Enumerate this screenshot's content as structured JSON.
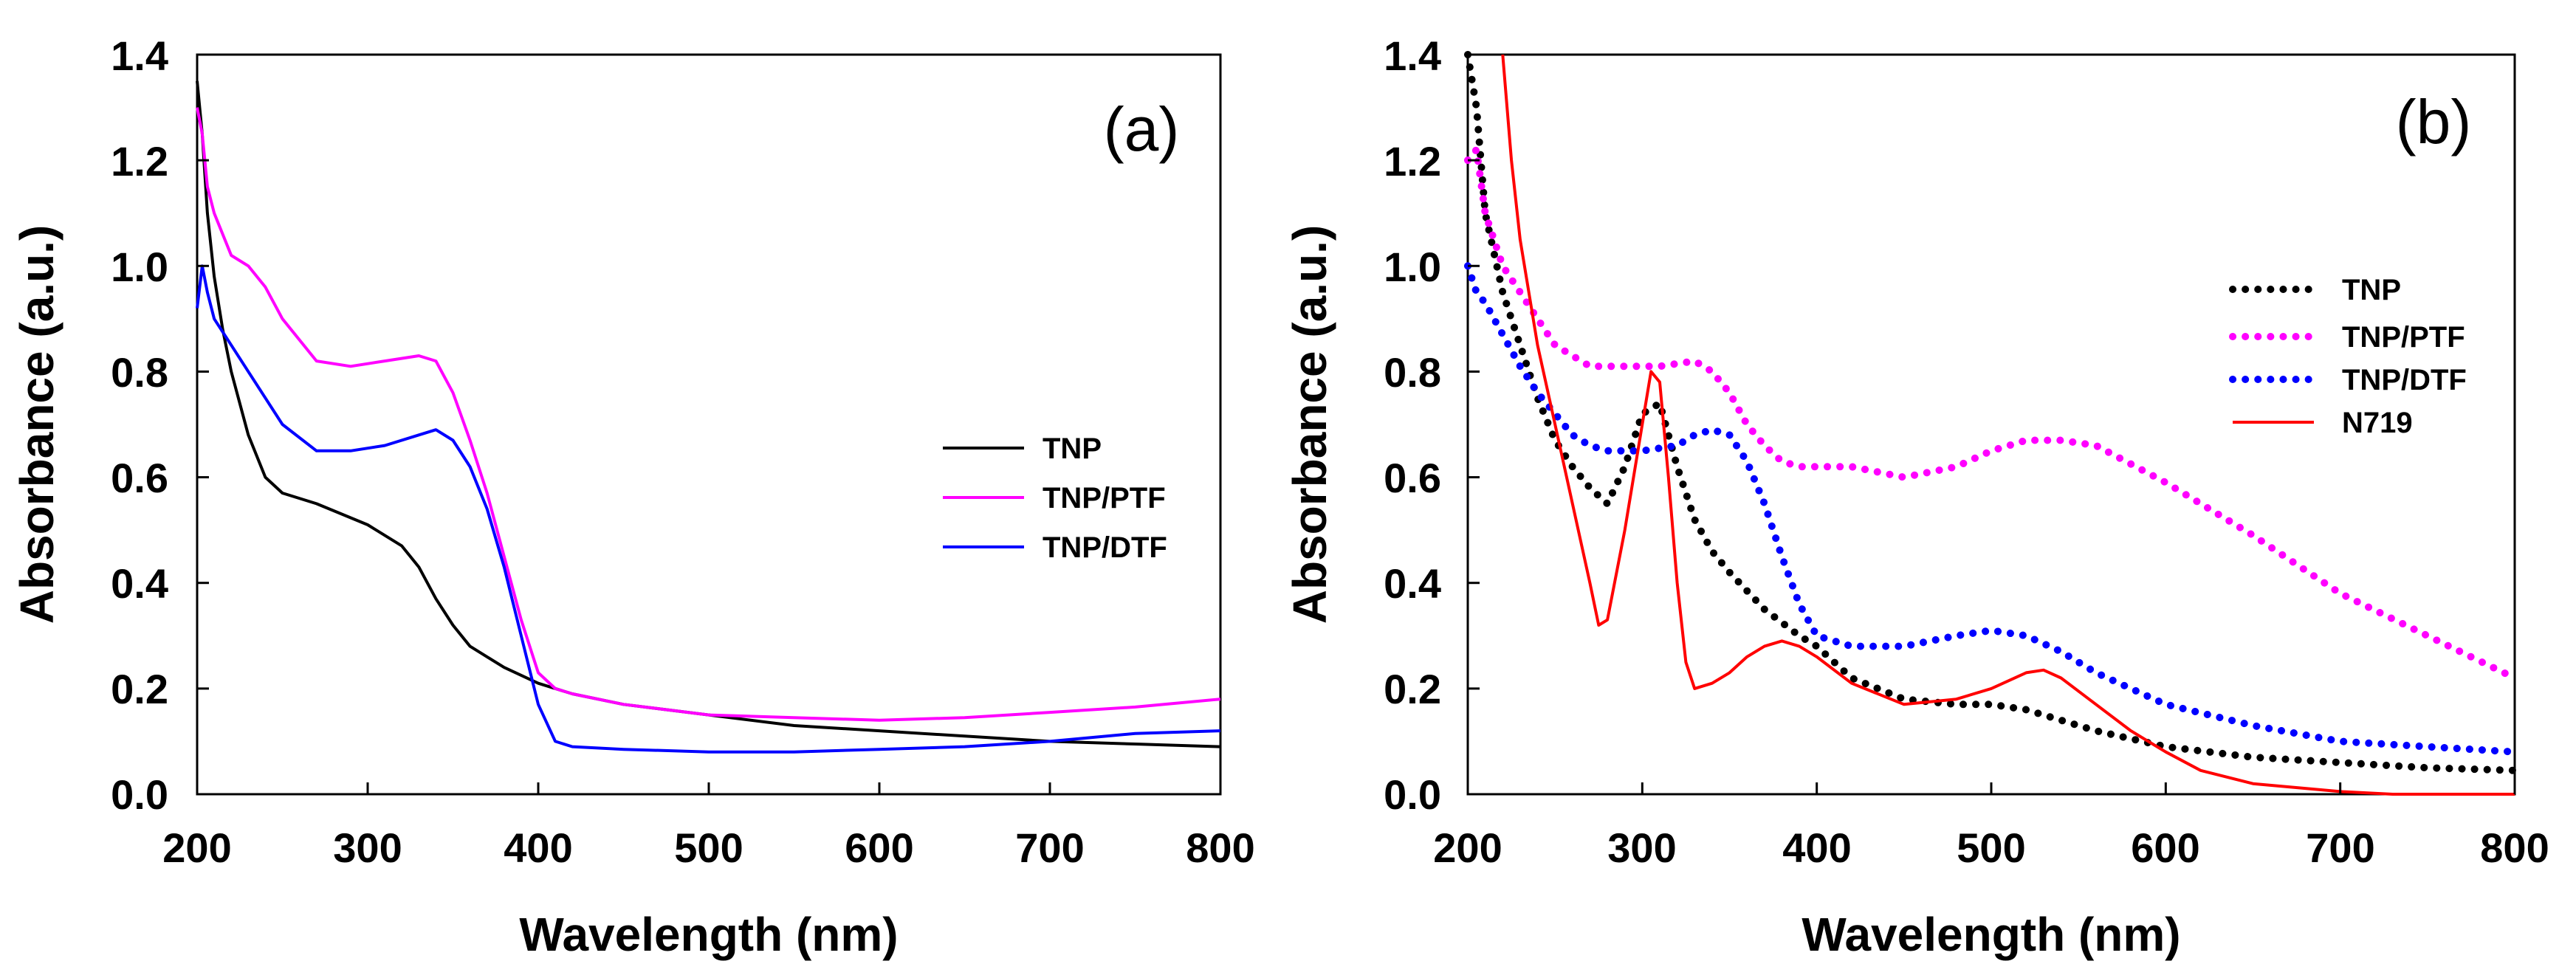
{
  "chart_data": [
    {
      "type": "line",
      "panel_label": "(a)",
      "xlabel": "Wavelength (nm)",
      "ylabel": "Absorbance (a.u.)",
      "xlim": [
        200,
        800
      ],
      "ylim": [
        0.0,
        1.4
      ],
      "xticks": [
        "200",
        "300",
        "400",
        "500",
        "600",
        "700",
        "800"
      ],
      "yticks": [
        "0.0",
        "0.2",
        "0.4",
        "0.6",
        "0.8",
        "1.0",
        "1.2",
        "1.4"
      ],
      "legend_position": "center-right",
      "series": [
        {
          "name": "TNP",
          "color": "#000000",
          "style": "solid",
          "x": [
            200,
            203,
            206,
            210,
            215,
            220,
            230,
            240,
            250,
            270,
            300,
            320,
            330,
            340,
            350,
            360,
            370,
            380,
            400,
            420,
            450,
            500,
            550,
            600,
            650,
            700,
            750,
            800
          ],
          "y": [
            1.35,
            1.25,
            1.1,
            0.98,
            0.88,
            0.8,
            0.68,
            0.6,
            0.57,
            0.55,
            0.51,
            0.47,
            0.43,
            0.37,
            0.32,
            0.28,
            0.26,
            0.24,
            0.21,
            0.19,
            0.17,
            0.15,
            0.13,
            0.12,
            0.11,
            0.1,
            0.095,
            0.09
          ]
        },
        {
          "name": "TNP/PTF",
          "color": "#ff00ff",
          "style": "solid",
          "x": [
            200,
            203,
            206,
            210,
            220,
            230,
            240,
            250,
            270,
            290,
            310,
            330,
            340,
            350,
            360,
            370,
            380,
            390,
            400,
            410,
            420,
            450,
            500,
            550,
            600,
            650,
            700,
            750,
            800
          ],
          "y": [
            1.3,
            1.25,
            1.15,
            1.1,
            1.02,
            1.0,
            0.96,
            0.9,
            0.82,
            0.81,
            0.82,
            0.83,
            0.82,
            0.76,
            0.67,
            0.57,
            0.45,
            0.33,
            0.23,
            0.2,
            0.19,
            0.17,
            0.15,
            0.145,
            0.14,
            0.145,
            0.155,
            0.165,
            0.18
          ]
        },
        {
          "name": "TNP/DTF",
          "color": "#0000ff",
          "style": "solid",
          "x": [
            200,
            203,
            206,
            210,
            220,
            230,
            240,
            250,
            270,
            290,
            310,
            330,
            340,
            350,
            360,
            370,
            380,
            390,
            400,
            410,
            420,
            450,
            500,
            550,
            600,
            650,
            700,
            750,
            800
          ],
          "y": [
            0.92,
            1.0,
            0.95,
            0.9,
            0.85,
            0.8,
            0.75,
            0.7,
            0.65,
            0.65,
            0.66,
            0.68,
            0.69,
            0.67,
            0.62,
            0.54,
            0.43,
            0.3,
            0.17,
            0.1,
            0.09,
            0.085,
            0.08,
            0.08,
            0.085,
            0.09,
            0.1,
            0.115,
            0.12
          ]
        }
      ]
    },
    {
      "type": "line",
      "panel_label": "(b)",
      "xlabel": "Wavelength (nm)",
      "ylabel": "Absorbance (a.u.)",
      "xlim": [
        200,
        800
      ],
      "ylim": [
        0.0,
        1.4
      ],
      "xticks": [
        "200",
        "300",
        "400",
        "500",
        "600",
        "700",
        "800"
      ],
      "yticks": [
        "0.0",
        "0.2",
        "0.4",
        "0.6",
        "0.8",
        "1.0",
        "1.2",
        "1.4"
      ],
      "legend_position": "center-right",
      "series": [
        {
          "name": "TNP",
          "color": "#000000",
          "style": "dotted",
          "x": [
            200,
            205,
            210,
            220,
            230,
            240,
            250,
            260,
            270,
            280,
            290,
            300,
            310,
            320,
            330,
            340,
            350,
            370,
            390,
            400,
            420,
            450,
            480,
            500,
            520,
            540,
            560,
            600,
            650,
            700,
            750,
            800
          ],
          "y": [
            1.4,
            1.3,
            1.1,
            0.95,
            0.85,
            0.75,
            0.67,
            0.62,
            0.58,
            0.55,
            0.62,
            0.72,
            0.74,
            0.62,
            0.52,
            0.46,
            0.42,
            0.35,
            0.3,
            0.28,
            0.22,
            0.18,
            0.17,
            0.17,
            0.16,
            0.14,
            0.12,
            0.09,
            0.07,
            0.06,
            0.05,
            0.045
          ]
        },
        {
          "name": "TNP/PTF",
          "color": "#ff00ff",
          "style": "dotted",
          "x": [
            200,
            205,
            210,
            220,
            230,
            240,
            250,
            270,
            290,
            310,
            330,
            340,
            350,
            360,
            370,
            380,
            390,
            400,
            420,
            450,
            480,
            500,
            520,
            540,
            560,
            600,
            650,
            700,
            750,
            800
          ],
          "y": [
            1.2,
            1.22,
            1.1,
            1.0,
            0.95,
            0.9,
            0.85,
            0.81,
            0.81,
            0.81,
            0.82,
            0.8,
            0.76,
            0.7,
            0.66,
            0.63,
            0.62,
            0.62,
            0.62,
            0.6,
            0.62,
            0.65,
            0.67,
            0.67,
            0.66,
            0.59,
            0.49,
            0.38,
            0.3,
            0.22
          ]
        },
        {
          "name": "TNP/DTF",
          "color": "#0000ff",
          "style": "dotted",
          "x": [
            200,
            205,
            210,
            220,
            230,
            240,
            250,
            260,
            270,
            280,
            300,
            320,
            330,
            340,
            350,
            360,
            370,
            380,
            390,
            400,
            420,
            450,
            480,
            500,
            520,
            540,
            560,
            600,
            650,
            700,
            750,
            800
          ],
          "y": [
            1.0,
            0.95,
            0.93,
            0.87,
            0.81,
            0.76,
            0.72,
            0.68,
            0.66,
            0.65,
            0.65,
            0.66,
            0.68,
            0.69,
            0.68,
            0.63,
            0.55,
            0.45,
            0.36,
            0.3,
            0.28,
            0.28,
            0.3,
            0.31,
            0.3,
            0.27,
            0.23,
            0.17,
            0.13,
            0.1,
            0.09,
            0.08
          ]
        },
        {
          "name": "N719",
          "color": "#ff0000",
          "style": "solid",
          "x": [
            220,
            225,
            230,
            240,
            250,
            260,
            270,
            275,
            280,
            290,
            300,
            305,
            310,
            315,
            320,
            325,
            330,
            340,
            350,
            360,
            370,
            380,
            390,
            400,
            420,
            450,
            480,
            500,
            520,
            530,
            540,
            560,
            580,
            600,
            620,
            650,
            700,
            730,
            800
          ],
          "y": [
            1.4,
            1.2,
            1.05,
            0.85,
            0.7,
            0.55,
            0.4,
            0.32,
            0.33,
            0.5,
            0.7,
            0.8,
            0.78,
            0.6,
            0.4,
            0.25,
            0.2,
            0.21,
            0.23,
            0.26,
            0.28,
            0.29,
            0.28,
            0.26,
            0.21,
            0.17,
            0.18,
            0.2,
            0.23,
            0.235,
            0.22,
            0.17,
            0.12,
            0.08,
            0.045,
            0.02,
            0.005,
            0.0,
            0.0
          ]
        }
      ]
    }
  ]
}
